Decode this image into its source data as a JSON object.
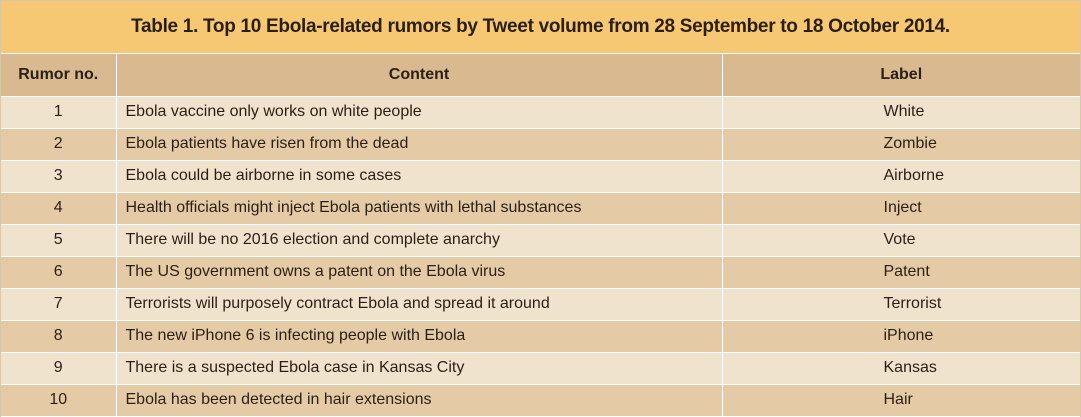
{
  "caption": "Table 1. Top 10 Ebola-related rumors by Tweet volume from 28 September to 18 October 2014.",
  "headers": {
    "rumor_no": "Rumor no.",
    "content": "Content",
    "label": "Label"
  },
  "rows": [
    {
      "no": "1",
      "content": "Ebola vaccine only works on white people",
      "label": "White"
    },
    {
      "no": "2",
      "content": "Ebola patients have risen from the dead",
      "label": "Zombie"
    },
    {
      "no": "3",
      "content": "Ebola could be airborne in some cases",
      "label": "Airborne"
    },
    {
      "no": "4",
      "content": "Health officials might inject Ebola patients with lethal substances",
      "label": "Inject"
    },
    {
      "no": "5",
      "content": "There will be no 2016 election and complete anarchy",
      "label": "Vote"
    },
    {
      "no": "6",
      "content": "The US government owns a patent on the Ebola virus",
      "label": "Patent"
    },
    {
      "no": "7",
      "content": "Terrorists will purposely contract Ebola and spread it around",
      "label": "Terrorist"
    },
    {
      "no": "8",
      "content": "The new iPhone 6 is infecting people with Ebola",
      "label": "iPhone"
    },
    {
      "no": "9",
      "content": "There is a suspected Ebola case in Kansas City",
      "label": "Kansas"
    },
    {
      "no": "10",
      "content": "Ebola has been detected in hair extensions",
      "label": "Hair"
    }
  ],
  "colors": {
    "caption_bg": "#f7c873",
    "header_bg": "#d9b98f",
    "row_light": "#f0e3ce",
    "row_dark": "#e4cba6",
    "text": "#2a1f14"
  }
}
